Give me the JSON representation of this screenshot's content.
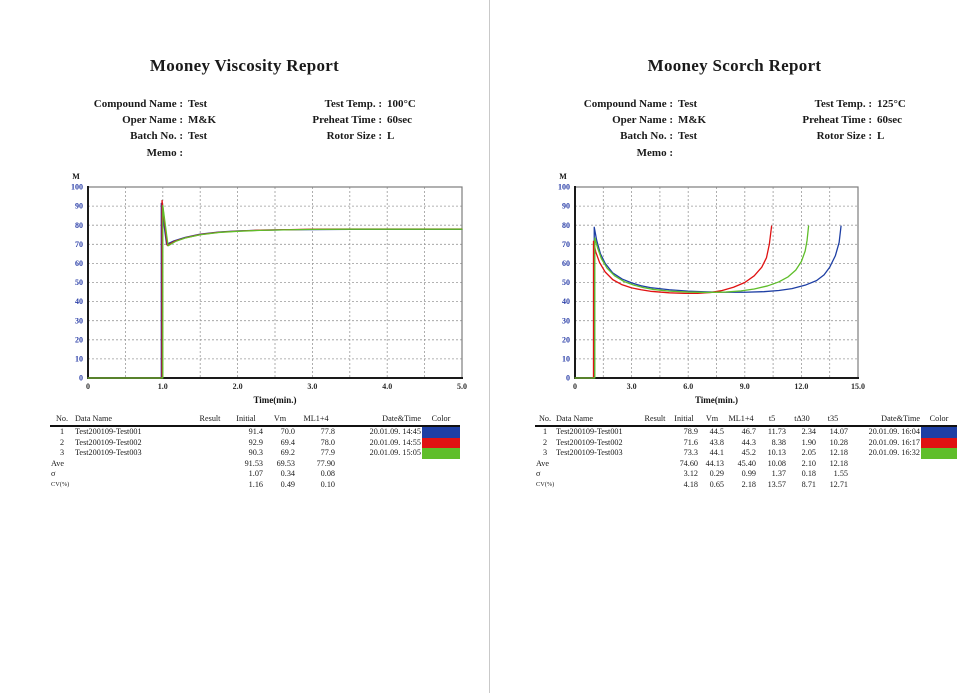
{
  "pages": [
    {
      "title": "Mooney Viscosity Report",
      "info": {
        "left": [
          {
            "label": "Compound Name :",
            "value": "Test"
          },
          {
            "label": "Oper Name :",
            "value": "M&K"
          },
          {
            "label": "Batch No. :",
            "value": "Test"
          },
          {
            "label": "Memo :",
            "value": ""
          }
        ],
        "right": [
          {
            "label": "Test Temp. :",
            "value": "100°C"
          },
          {
            "label": "Preheat Time :",
            "value": "60sec"
          },
          {
            "label": "Rotor Size :",
            "value": "L"
          }
        ]
      },
      "chart_data": {
        "type": "line",
        "title": "",
        "ylabel": "M",
        "xlabel": "Time(min.)",
        "xlim": [
          0,
          5
        ],
        "ylim": [
          0,
          100
        ],
        "x_tick_values": [
          0,
          1,
          2,
          3,
          4,
          5
        ],
        "x_tick_labels": [
          "0",
          "1.0",
          "2.0",
          "3.0",
          "4.0",
          "5.0"
        ],
        "x_grid_step": 0.5,
        "y_tick_step": 10,
        "grid": "dashed",
        "axis_label_color": "#2b3fa8",
        "series": [
          {
            "name": "Test200109-Test001",
            "color": "#1e3fa4",
            "points": [
              [
                0,
                0
              ],
              [
                0.98,
                0
              ],
              [
                0.98,
                91.4
              ],
              [
                1.05,
                70.0
              ],
              [
                1.15,
                71.8
              ],
              [
                1.3,
                73.6
              ],
              [
                1.5,
                75.3
              ],
              [
                1.75,
                76.4
              ],
              [
                2.0,
                77.0
              ],
              [
                2.3,
                77.4
              ],
              [
                2.7,
                77.6
              ],
              [
                3.0,
                77.7
              ],
              [
                3.5,
                77.8
              ],
              [
                4.0,
                77.8
              ],
              [
                4.5,
                77.8
              ],
              [
                5.0,
                77.8
              ]
            ]
          },
          {
            "name": "Test200109-Test002",
            "color": "#e01212",
            "points": [
              [
                0,
                0
              ],
              [
                0.99,
                0
              ],
              [
                0.99,
                92.9
              ],
              [
                1.06,
                69.4
              ],
              [
                1.16,
                71.6
              ],
              [
                1.3,
                73.4
              ],
              [
                1.5,
                75.1
              ],
              [
                1.75,
                76.3
              ],
              [
                2.0,
                76.9
              ],
              [
                2.3,
                77.4
              ],
              [
                2.7,
                77.7
              ],
              [
                3.0,
                77.9
              ],
              [
                3.5,
                78.0
              ],
              [
                4.0,
                78.0
              ],
              [
                4.5,
                78.0
              ],
              [
                5.0,
                78.0
              ]
            ]
          },
          {
            "name": "Test200109-Test003",
            "color": "#5fbe2a",
            "points": [
              [
                0,
                0
              ],
              [
                1.0,
                0
              ],
              [
                1.0,
                90.3
              ],
              [
                1.07,
                69.2
              ],
              [
                1.17,
                71.5
              ],
              [
                1.3,
                73.3
              ],
              [
                1.5,
                75.0
              ],
              [
                1.75,
                76.2
              ],
              [
                2.0,
                76.8
              ],
              [
                2.3,
                77.3
              ],
              [
                2.7,
                77.6
              ],
              [
                3.0,
                77.8
              ],
              [
                3.5,
                77.9
              ],
              [
                4.0,
                77.9
              ],
              [
                4.5,
                77.9
              ],
              [
                5.0,
                77.9
              ]
            ]
          }
        ]
      },
      "table": {
        "headers": [
          "No.",
          "Data Name",
          "Result",
          "Initial",
          "Vm",
          "ML1+4",
          "Date&Time",
          "Color"
        ],
        "rows": [
          {
            "no": "1",
            "name": "Test200109-Test001",
            "values": [
              "",
              "91.4",
              "70.0",
              "77.8"
            ],
            "datetime": "20.01.09. 14:45",
            "color": "#1e3fa4"
          },
          {
            "no": "2",
            "name": "Test200109-Test002",
            "values": [
              "",
              "92.9",
              "69.4",
              "78.0"
            ],
            "datetime": "20.01.09. 14:55",
            "color": "#e01212"
          },
          {
            "no": "3",
            "name": "Test200109-Test003",
            "values": [
              "",
              "90.3",
              "69.2",
              "77.9"
            ],
            "datetime": "20.01.09. 15:05",
            "color": "#5fbe2a"
          }
        ],
        "stats": [
          {
            "no": "Ave",
            "values": [
              "",
              "91.53",
              "69.53",
              "77.90"
            ]
          },
          {
            "no": "σ",
            "values": [
              "",
              "1.07",
              "0.34",
              "0.08"
            ]
          },
          {
            "no": "CV(%)",
            "values": [
              "",
              "1.16",
              "0.49",
              "0.10"
            ]
          }
        ]
      }
    },
    {
      "title": "Mooney Scorch Report",
      "info": {
        "left": [
          {
            "label": "Compound Name :",
            "value": "Test"
          },
          {
            "label": "Oper Name :",
            "value": "M&K"
          },
          {
            "label": "Batch No. :",
            "value": "Test"
          },
          {
            "label": "Memo :",
            "value": ""
          }
        ],
        "right": [
          {
            "label": "Test Temp. :",
            "value": "125°C"
          },
          {
            "label": "Preheat Time :",
            "value": "60sec"
          },
          {
            "label": "Rotor Size :",
            "value": "L"
          }
        ]
      },
      "chart_data": {
        "type": "line",
        "title": "",
        "ylabel": "M",
        "xlabel": "Time(min.)",
        "xlim": [
          0,
          15
        ],
        "ylim": [
          0,
          100
        ],
        "x_tick_values": [
          0,
          3,
          6,
          9,
          12,
          15
        ],
        "x_tick_labels": [
          "0",
          "3.0",
          "6.0",
          "9.0",
          "12.0",
          "15.0"
        ],
        "x_grid_step": 1.5,
        "y_tick_step": 10,
        "grid": "dashed",
        "axis_label_color": "#2b3fa8",
        "series": [
          {
            "name": "Test200109-Test001",
            "color": "#1e3fa4",
            "points": [
              [
                0,
                0
              ],
              [
                1.02,
                0
              ],
              [
                1.02,
                78.9
              ],
              [
                1.15,
                72
              ],
              [
                1.35,
                65
              ],
              [
                1.6,
                60
              ],
              [
                2.0,
                55
              ],
              [
                2.5,
                51.8
              ],
              [
                3.0,
                49.8
              ],
              [
                3.5,
                48.3
              ],
              [
                4.0,
                47.3
              ],
              [
                5.0,
                46.2
              ],
              [
                6.0,
                45.5
              ],
              [
                7.0,
                45.1
              ],
              [
                8.0,
                44.9
              ],
              [
                9.0,
                44.9
              ],
              [
                10.0,
                45.2
              ],
              [
                10.8,
                45.8
              ],
              [
                11.5,
                46.8
              ],
              [
                12.2,
                48.6
              ],
              [
                12.8,
                51
              ],
              [
                13.2,
                54
              ],
              [
                13.5,
                58
              ],
              [
                13.8,
                64
              ],
              [
                14.0,
                71
              ],
              [
                14.1,
                79.5
              ]
            ]
          },
          {
            "name": "Test200109-Test002",
            "color": "#e01212",
            "points": [
              [
                0,
                0
              ],
              [
                0.98,
                0
              ],
              [
                0.98,
                71.6
              ],
              [
                1.1,
                66
              ],
              [
                1.3,
                60.5
              ],
              [
                1.6,
                55.5
              ],
              [
                2.0,
                51.5
              ],
              [
                2.5,
                48.8
              ],
              [
                3.0,
                47.2
              ],
              [
                3.5,
                46.2
              ],
              [
                4.0,
                45.4
              ],
              [
                5.0,
                44.6
              ],
              [
                5.8,
                44.3
              ],
              [
                6.5,
                44.3
              ],
              [
                7.2,
                44.8
              ],
              [
                7.8,
                45.8
              ],
              [
                8.4,
                47.5
              ],
              [
                9.0,
                50
              ],
              [
                9.5,
                53.5
              ],
              [
                9.9,
                58
              ],
              [
                10.15,
                63
              ],
              [
                10.3,
                70
              ],
              [
                10.42,
                79.5
              ]
            ]
          },
          {
            "name": "Test200109-Test003",
            "color": "#5fbe2a",
            "points": [
              [
                0,
                0
              ],
              [
                1.05,
                0
              ],
              [
                1.05,
                73.3
              ],
              [
                1.2,
                68
              ],
              [
                1.4,
                62.5
              ],
              [
                1.7,
                57.5
              ],
              [
                2.1,
                53.5
              ],
              [
                2.6,
                50.5
              ],
              [
                3.1,
                48.7
              ],
              [
                3.6,
                47.4
              ],
              [
                4.2,
                46.3
              ],
              [
                5.0,
                45.5
              ],
              [
                6.0,
                45.0
              ],
              [
                7.0,
                44.8
              ],
              [
                8.0,
                45.0
              ],
              [
                8.8,
                45.6
              ],
              [
                9.5,
                46.6
              ],
              [
                10.2,
                48.2
              ],
              [
                10.8,
                50.3
              ],
              [
                11.3,
                53
              ],
              [
                11.7,
                56.5
              ],
              [
                12.0,
                61
              ],
              [
                12.2,
                66.5
              ],
              [
                12.3,
                72
              ],
              [
                12.38,
                79.5
              ]
            ]
          }
        ]
      },
      "table": {
        "headers": [
          "No.",
          "Data Name",
          "Result",
          "Initial",
          "Vm",
          "ML1+4",
          "t5",
          "t∆30",
          "t35",
          "Date&Time",
          "Color"
        ],
        "rows": [
          {
            "no": "1",
            "name": "Test200109-Test001",
            "values": [
              "",
              "78.9",
              "44.5",
              "46.7",
              "11.73",
              "2.34",
              "14.07"
            ],
            "datetime": "20.01.09. 16:04",
            "color": "#1e3fa4"
          },
          {
            "no": "2",
            "name": "Test200109-Test002",
            "values": [
              "",
              "71.6",
              "43.8",
              "44.3",
              "8.38",
              "1.90",
              "10.28"
            ],
            "datetime": "20.01.09. 16:17",
            "color": "#e01212"
          },
          {
            "no": "3",
            "name": "Test200109-Test003",
            "values": [
              "",
              "73.3",
              "44.1",
              "45.2",
              "10.13",
              "2.05",
              "12.18"
            ],
            "datetime": "20.01.09. 16:32",
            "color": "#5fbe2a"
          }
        ],
        "stats": [
          {
            "no": "Ave",
            "values": [
              "",
              "74.60",
              "44.13",
              "45.40",
              "10.08",
              "2.10",
              "12.18"
            ]
          },
          {
            "no": "σ",
            "values": [
              "",
              "3.12",
              "0.29",
              "0.99",
              "1.37",
              "0.18",
              "1.55"
            ]
          },
          {
            "no": "CV(%)",
            "values": [
              "",
              "4.18",
              "0.65",
              "2.18",
              "13.57",
              "8.71",
              "12.71"
            ]
          }
        ]
      }
    }
  ]
}
